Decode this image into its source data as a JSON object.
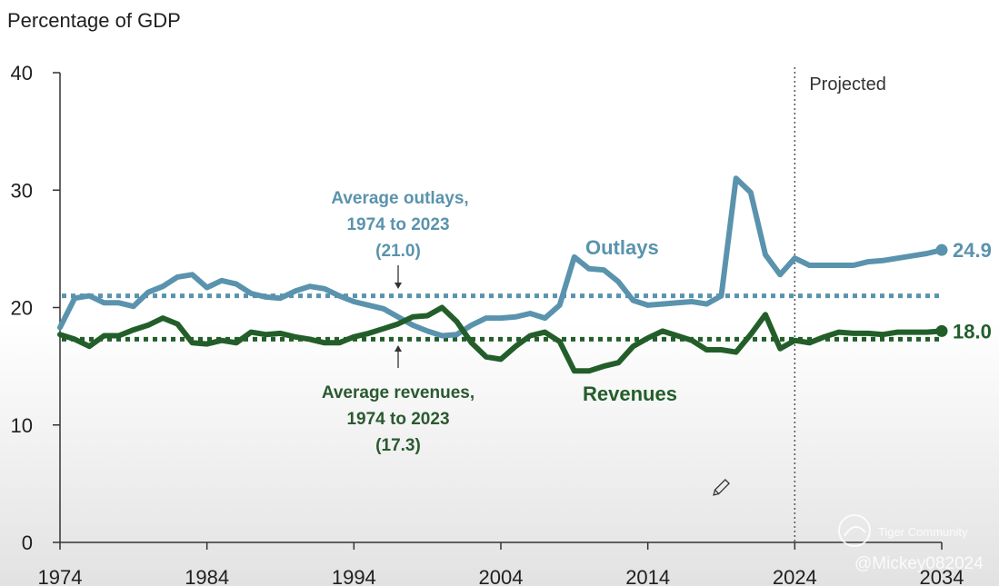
{
  "chart_data": {
    "type": "line",
    "title": "Percentage of GDP",
    "x_ticks": [
      "1974",
      "1984",
      "1994",
      "2004",
      "2014",
      "2024",
      "2034"
    ],
    "y_ticks": [
      "0",
      "10",
      "20",
      "30",
      "40"
    ],
    "xlim": [
      1974,
      2034
    ],
    "ylim": [
      0,
      40
    ],
    "projected_from": 2024,
    "projected_label": "Projected",
    "series": [
      {
        "name": "Outlays",
        "label": "Outlays",
        "color": "#5a93ad",
        "end_value": "24.9",
        "x": [
          1974,
          1975,
          1976,
          1977,
          1978,
          1979,
          1980,
          1981,
          1982,
          1983,
          1984,
          1985,
          1986,
          1987,
          1988,
          1989,
          1990,
          1991,
          1992,
          1993,
          1994,
          1995,
          1996,
          1997,
          1998,
          1999,
          2000,
          2001,
          2002,
          2003,
          2004,
          2005,
          2006,
          2007,
          2008,
          2009,
          2010,
          2011,
          2012,
          2013,
          2014,
          2015,
          2016,
          2017,
          2018,
          2019,
          2020,
          2021,
          2022,
          2023,
          2024,
          2025,
          2026,
          2027,
          2028,
          2029,
          2030,
          2031,
          2032,
          2033,
          2034
        ],
        "values": [
          18.3,
          20.8,
          21.0,
          20.4,
          20.4,
          20.1,
          21.3,
          21.8,
          22.6,
          22.8,
          21.7,
          22.3,
          22.0,
          21.2,
          20.9,
          20.8,
          21.4,
          21.8,
          21.6,
          21.0,
          20.5,
          20.2,
          19.9,
          19.2,
          18.5,
          18.0,
          17.6,
          17.7,
          18.5,
          19.1,
          19.1,
          19.2,
          19.5,
          19.1,
          20.2,
          24.3,
          23.3,
          23.2,
          22.2,
          20.6,
          20.2,
          20.3,
          20.4,
          20.5,
          20.3,
          21.0,
          31.0,
          29.8,
          24.5,
          22.8,
          24.2,
          23.6,
          23.6,
          23.6,
          23.6,
          23.9,
          24.0,
          24.2,
          24.4,
          24.6,
          24.9
        ]
      },
      {
        "name": "Revenues",
        "label": "Revenues",
        "color": "#235e2a",
        "end_value": "18.0",
        "x": [
          1974,
          1975,
          1976,
          1977,
          1978,
          1979,
          1980,
          1981,
          1982,
          1983,
          1984,
          1985,
          1986,
          1987,
          1988,
          1989,
          1990,
          1991,
          1992,
          1993,
          1994,
          1995,
          1996,
          1997,
          1998,
          1999,
          2000,
          2001,
          2002,
          2003,
          2004,
          2005,
          2006,
          2007,
          2008,
          2009,
          2010,
          2011,
          2012,
          2013,
          2014,
          2015,
          2016,
          2017,
          2018,
          2019,
          2020,
          2021,
          2022,
          2023,
          2024,
          2025,
          2026,
          2027,
          2028,
          2029,
          2030,
          2031,
          2032,
          2033,
          2034
        ],
        "values": [
          17.7,
          17.3,
          16.7,
          17.6,
          17.6,
          18.1,
          18.5,
          19.1,
          18.6,
          17.0,
          16.9,
          17.2,
          17.0,
          17.9,
          17.7,
          17.8,
          17.5,
          17.3,
          17.0,
          17.0,
          17.5,
          17.8,
          18.2,
          18.6,
          19.2,
          19.3,
          20.0,
          18.8,
          17.0,
          15.8,
          15.6,
          16.7,
          17.6,
          17.9,
          17.1,
          14.6,
          14.6,
          15.0,
          15.3,
          16.7,
          17.4,
          18.0,
          17.6,
          17.2,
          16.4,
          16.4,
          16.2,
          17.7,
          19.4,
          16.5,
          17.2,
          17.0,
          17.5,
          17.9,
          17.8,
          17.8,
          17.7,
          17.9,
          17.9,
          17.9,
          18.0
        ]
      }
    ],
    "averages": [
      {
        "name": "Average outlays",
        "value": 21.0,
        "color": "#5a93ad",
        "text": [
          "Average outlays,",
          "1974 to 2023",
          "(21.0)"
        ]
      },
      {
        "name": "Average revenues",
        "value": 17.3,
        "color": "#235e2a",
        "text": [
          "Average revenues,",
          "1974 to 2023",
          "(17.3)"
        ]
      }
    ]
  },
  "watermark": {
    "community": "Tiger Community",
    "handle": "@Mickey082024"
  }
}
